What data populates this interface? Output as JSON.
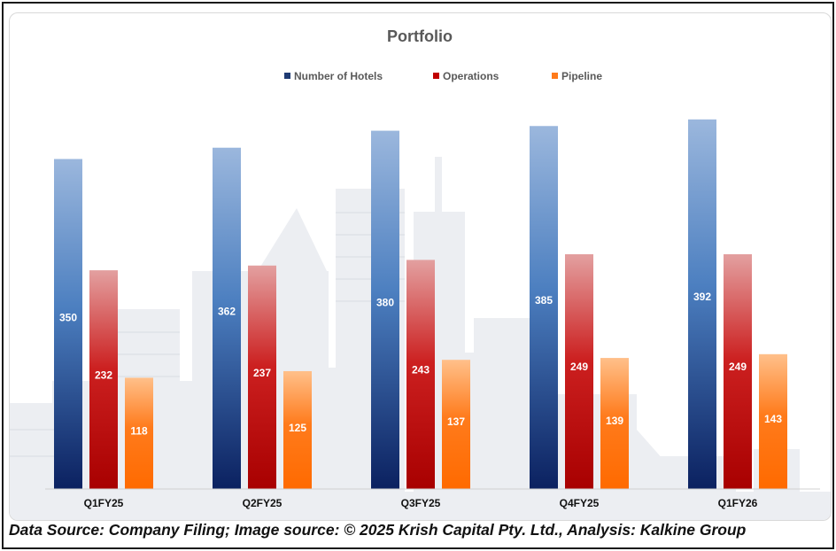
{
  "chart_data": {
    "type": "bar",
    "title": "Portfolio",
    "categories": [
      "Q1FY25",
      "Q2FY25",
      "Q3FY25",
      "Q4FY25",
      "Q1FY26"
    ],
    "series": [
      {
        "name": "Number of Hotels",
        "values": [
          350,
          362,
          380,
          385,
          392
        ]
      },
      {
        "name": "Operations",
        "values": [
          232,
          237,
          243,
          249,
          249
        ]
      },
      {
        "name": "Pipeline",
        "values": [
          118,
          125,
          137,
          139,
          143
        ]
      }
    ],
    "colors": {
      "Number of Hotels": {
        "top": "#9bb7dd",
        "mid": "#4c7fc0",
        "bottom": "#0b2160",
        "legend": "#1f3b73"
      },
      "Operations": {
        "top": "#e3a0a0",
        "mid": "#cc2020",
        "bottom": "#a80000",
        "legend": "#c00000"
      },
      "Pipeline": {
        "top": "#ffc08a",
        "mid": "#ff7b1c",
        "bottom": "#ff6a00",
        "legend": "#ff7a1a"
      }
    },
    "xlabel": "",
    "ylabel": "",
    "ylim": [
      0,
      420
    ],
    "grid": false,
    "legend_position": "top-center",
    "data_labels": true
  },
  "footer": {
    "text": "Data Source: Company Filing; Image source: © 2025 Krish Capital Pty. Ltd., Analysis: Kalkine Group"
  }
}
